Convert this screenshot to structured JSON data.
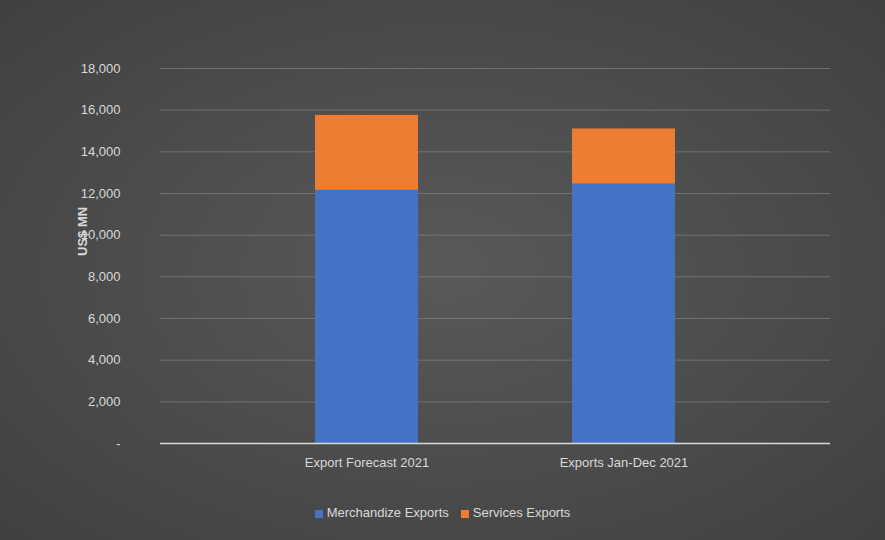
{
  "chart_data": {
    "type": "bar",
    "stacked": true,
    "grid": true,
    "legend": "bottom",
    "y_label": "US$ MN",
    "categories": [
      "Export Forecast 2021",
      "Exports Jan-Dec 2021"
    ],
    "series": [
      {
        "name": "Merchandize Exports",
        "color": "#4472c4",
        "values": [
          12150,
          12450
        ]
      },
      {
        "name": "Services Exports",
        "color": "#ed7d31",
        "values": [
          3600,
          2650
        ]
      }
    ],
    "ylim": [
      0,
      18000
    ],
    "yticks": [
      {
        "value": 0,
        "label": "-"
      },
      {
        "value": 2000,
        "label": "2,000"
      },
      {
        "value": 4000,
        "label": "4,000"
      },
      {
        "value": 6000,
        "label": "6,000"
      },
      {
        "value": 8000,
        "label": "8,000"
      },
      {
        "value": 10000,
        "label": "10,000"
      },
      {
        "value": 12000,
        "label": "12,000"
      },
      {
        "value": 14000,
        "label": "14,000"
      },
      {
        "value": 16000,
        "label": "16,000"
      },
      {
        "value": 18000,
        "label": "18,000"
      }
    ]
  }
}
